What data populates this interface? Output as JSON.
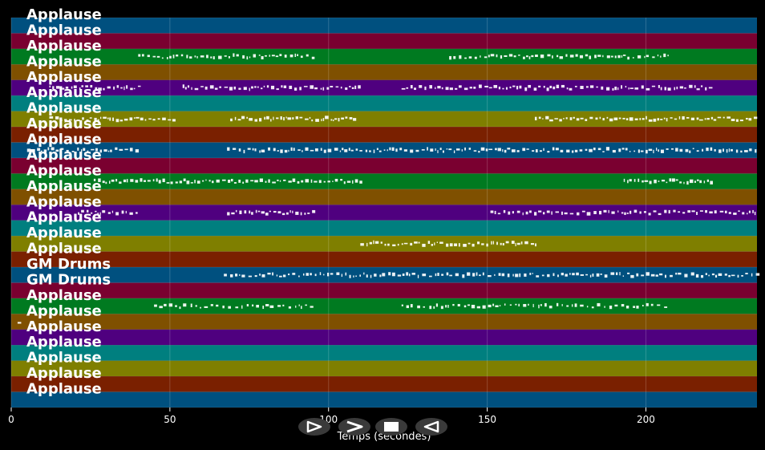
{
  "chart_data": {
    "type": "piano-roll",
    "xlabel": "Temps (secondes)",
    "xlim": [
      0,
      235
    ],
    "x_ticks": [
      0,
      50,
      100,
      150,
      200
    ],
    "grid": true,
    "tracks": [
      {
        "label": "Applause",
        "color": "#00507f",
        "events": []
      },
      {
        "label": "Applause",
        "color": "#7a0030",
        "events": []
      },
      {
        "label": "Applause",
        "color": "#007a20",
        "events": [
          [
            40,
            96,
            0.45
          ],
          [
            138,
            207,
            0.45
          ]
        ]
      },
      {
        "label": "Applause",
        "color": "#7f5000",
        "events": []
      },
      {
        "label": "Applause",
        "color": "#4f007f",
        "events": [
          [
            12,
            40,
            0.5
          ],
          [
            54,
            110,
            0.5
          ],
          [
            123,
            221,
            0.5
          ]
        ]
      },
      {
        "label": "Applause",
        "color": "#007f7f",
        "events": []
      },
      {
        "label": "Applause",
        "color": "#7f7f00",
        "events": [
          [
            12,
            51,
            0.6
          ],
          [
            69,
            108,
            0.6
          ],
          [
            165,
            235,
            0.6
          ]
        ]
      },
      {
        "label": "Applause",
        "color": "#7a2000",
        "events": []
      },
      {
        "label": "Applause",
        "color": "#00507f",
        "events": [
          [
            5,
            40,
            0.5
          ],
          [
            68,
            235,
            0.5
          ]
        ]
      },
      {
        "label": "Applause",
        "color": "#7a0030",
        "events": []
      },
      {
        "label": "Applause",
        "color": "#007a20",
        "events": [
          [
            26,
            110,
            0.6
          ],
          [
            193,
            221,
            0.6
          ]
        ]
      },
      {
        "label": "Applause",
        "color": "#7f5000",
        "events": []
      },
      {
        "label": "Applause",
        "color": "#4f007f",
        "events": [
          [
            21,
            40,
            0.5
          ],
          [
            68,
            96,
            0.5
          ],
          [
            151,
            235,
            0.5
          ]
        ]
      },
      {
        "label": "Applause",
        "color": "#007f7f",
        "events": []
      },
      {
        "label": "Applause",
        "color": "#7f7f00",
        "events": [
          [
            110,
            166,
            0.5
          ]
        ]
      },
      {
        "label": "Applause",
        "color": "#7a2000",
        "events": []
      },
      {
        "label": "GM Drums",
        "color": "#00507f",
        "events": [
          [
            67,
            235,
            0.45
          ]
        ]
      },
      {
        "label": "GM Drums",
        "color": "#7a0030",
        "events": []
      },
      {
        "label": "Applause",
        "color": "#007a20",
        "events": [
          [
            45,
            96,
            0.3
          ],
          [
            123,
            207,
            0.3
          ]
        ]
      },
      {
        "label": "Applause",
        "color": "#7f5000",
        "events": [
          [
            2,
            3,
            0.2
          ]
        ]
      },
      {
        "label": "Applause",
        "color": "#4f007f",
        "events": []
      },
      {
        "label": "Applause",
        "color": "#007f7f",
        "events": []
      },
      {
        "label": "Applause",
        "color": "#7f7f00",
        "events": []
      },
      {
        "label": "Applause",
        "color": "#7a2000",
        "events": []
      },
      {
        "label": "Applause",
        "color": "#00507f",
        "events": []
      }
    ]
  },
  "controls": [
    {
      "name": "play-button",
      "icon": "play-outline-icon"
    },
    {
      "name": "forward-button",
      "icon": "chevron-right-icon"
    },
    {
      "name": "stop-button",
      "icon": "stop-icon"
    },
    {
      "name": "rewind-button",
      "icon": "rewind-outline-icon"
    }
  ]
}
